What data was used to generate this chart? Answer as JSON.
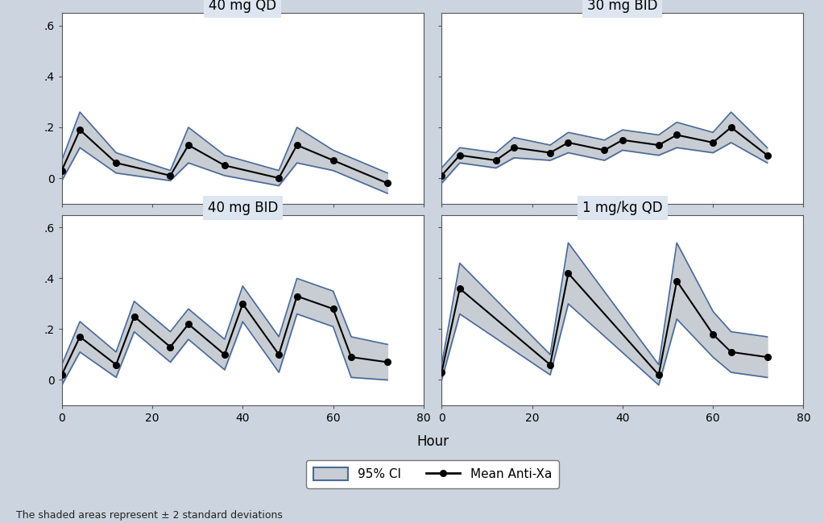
{
  "panels": [
    {
      "title": "40 mg QD",
      "hours": [
        0,
        4,
        12,
        24,
        28,
        36,
        48,
        52,
        60,
        72
      ],
      "mean": [
        0.03,
        0.19,
        0.06,
        0.01,
        0.13,
        0.05,
        0.0,
        0.13,
        0.07,
        -0.02
      ],
      "upper": [
        0.07,
        0.26,
        0.1,
        0.03,
        0.2,
        0.09,
        0.03,
        0.2,
        0.11,
        0.02
      ],
      "lower": [
        -0.01,
        0.12,
        0.02,
        -0.01,
        0.06,
        0.01,
        -0.03,
        0.06,
        0.03,
        -0.06
      ]
    },
    {
      "title": "30 mg BID",
      "hours": [
        0,
        4,
        12,
        16,
        24,
        28,
        36,
        40,
        48,
        52,
        60,
        64,
        72
      ],
      "mean": [
        0.01,
        0.09,
        0.07,
        0.12,
        0.1,
        0.14,
        0.11,
        0.15,
        0.13,
        0.17,
        0.14,
        0.2,
        0.09
      ],
      "upper": [
        0.04,
        0.12,
        0.1,
        0.16,
        0.13,
        0.18,
        0.15,
        0.19,
        0.17,
        0.22,
        0.18,
        0.26,
        0.12
      ],
      "lower": [
        -0.02,
        0.06,
        0.04,
        0.08,
        0.07,
        0.1,
        0.07,
        0.11,
        0.09,
        0.12,
        0.1,
        0.14,
        0.06
      ]
    },
    {
      "title": "40 mg BID",
      "hours": [
        0,
        4,
        12,
        16,
        24,
        28,
        36,
        40,
        48,
        52,
        60,
        64,
        72
      ],
      "mean": [
        0.02,
        0.17,
        0.06,
        0.25,
        0.13,
        0.22,
        0.1,
        0.3,
        0.1,
        0.33,
        0.28,
        0.09,
        0.07
      ],
      "upper": [
        0.06,
        0.23,
        0.11,
        0.31,
        0.19,
        0.28,
        0.16,
        0.37,
        0.17,
        0.4,
        0.35,
        0.17,
        0.14
      ],
      "lower": [
        -0.02,
        0.11,
        0.01,
        0.19,
        0.07,
        0.16,
        0.04,
        0.23,
        0.03,
        0.26,
        0.21,
        0.01,
        0.0
      ]
    },
    {
      "title": "1 mg/kg QD",
      "hours": [
        0,
        4,
        24,
        28,
        48,
        52,
        60,
        64,
        72
      ],
      "mean": [
        0.03,
        0.36,
        0.06,
        0.42,
        0.02,
        0.39,
        0.18,
        0.11,
        0.09
      ],
      "upper": [
        0.06,
        0.46,
        0.1,
        0.54,
        0.06,
        0.54,
        0.27,
        0.19,
        0.17
      ],
      "lower": [
        0.0,
        0.26,
        0.02,
        0.3,
        -0.02,
        0.24,
        0.09,
        0.03,
        0.01
      ]
    }
  ],
  "xlim": [
    0,
    80
  ],
  "ylim": [
    -0.1,
    0.65
  ],
  "yticks": [
    0.0,
    0.2,
    0.4,
    0.6
  ],
  "ytick_labels": [
    "0",
    ".2",
    ".4",
    ".6"
  ],
  "xticks": [
    0,
    20,
    40,
    60,
    80
  ],
  "xlabel": "Hour",
  "fill_color": "#c8cdd4",
  "fill_alpha": 1.0,
  "line_color": "#000000",
  "band_edge_color": "#4a6a9a",
  "band_edge_width": 1.2,
  "marker": "o",
  "markersize": 5.5,
  "linewidth": 1.5,
  "title_bg": "#dde6f0",
  "plot_bg": "#ffffff",
  "figure_bg": "#ccd5df",
  "title_fontsize": 12,
  "label_fontsize": 11,
  "tick_fontsize": 10,
  "legend_ci_label": "95% CI",
  "legend_mean_label": "Mean Anti-Xa",
  "footnote": "The shaded areas represent ± 2 standard deviations"
}
